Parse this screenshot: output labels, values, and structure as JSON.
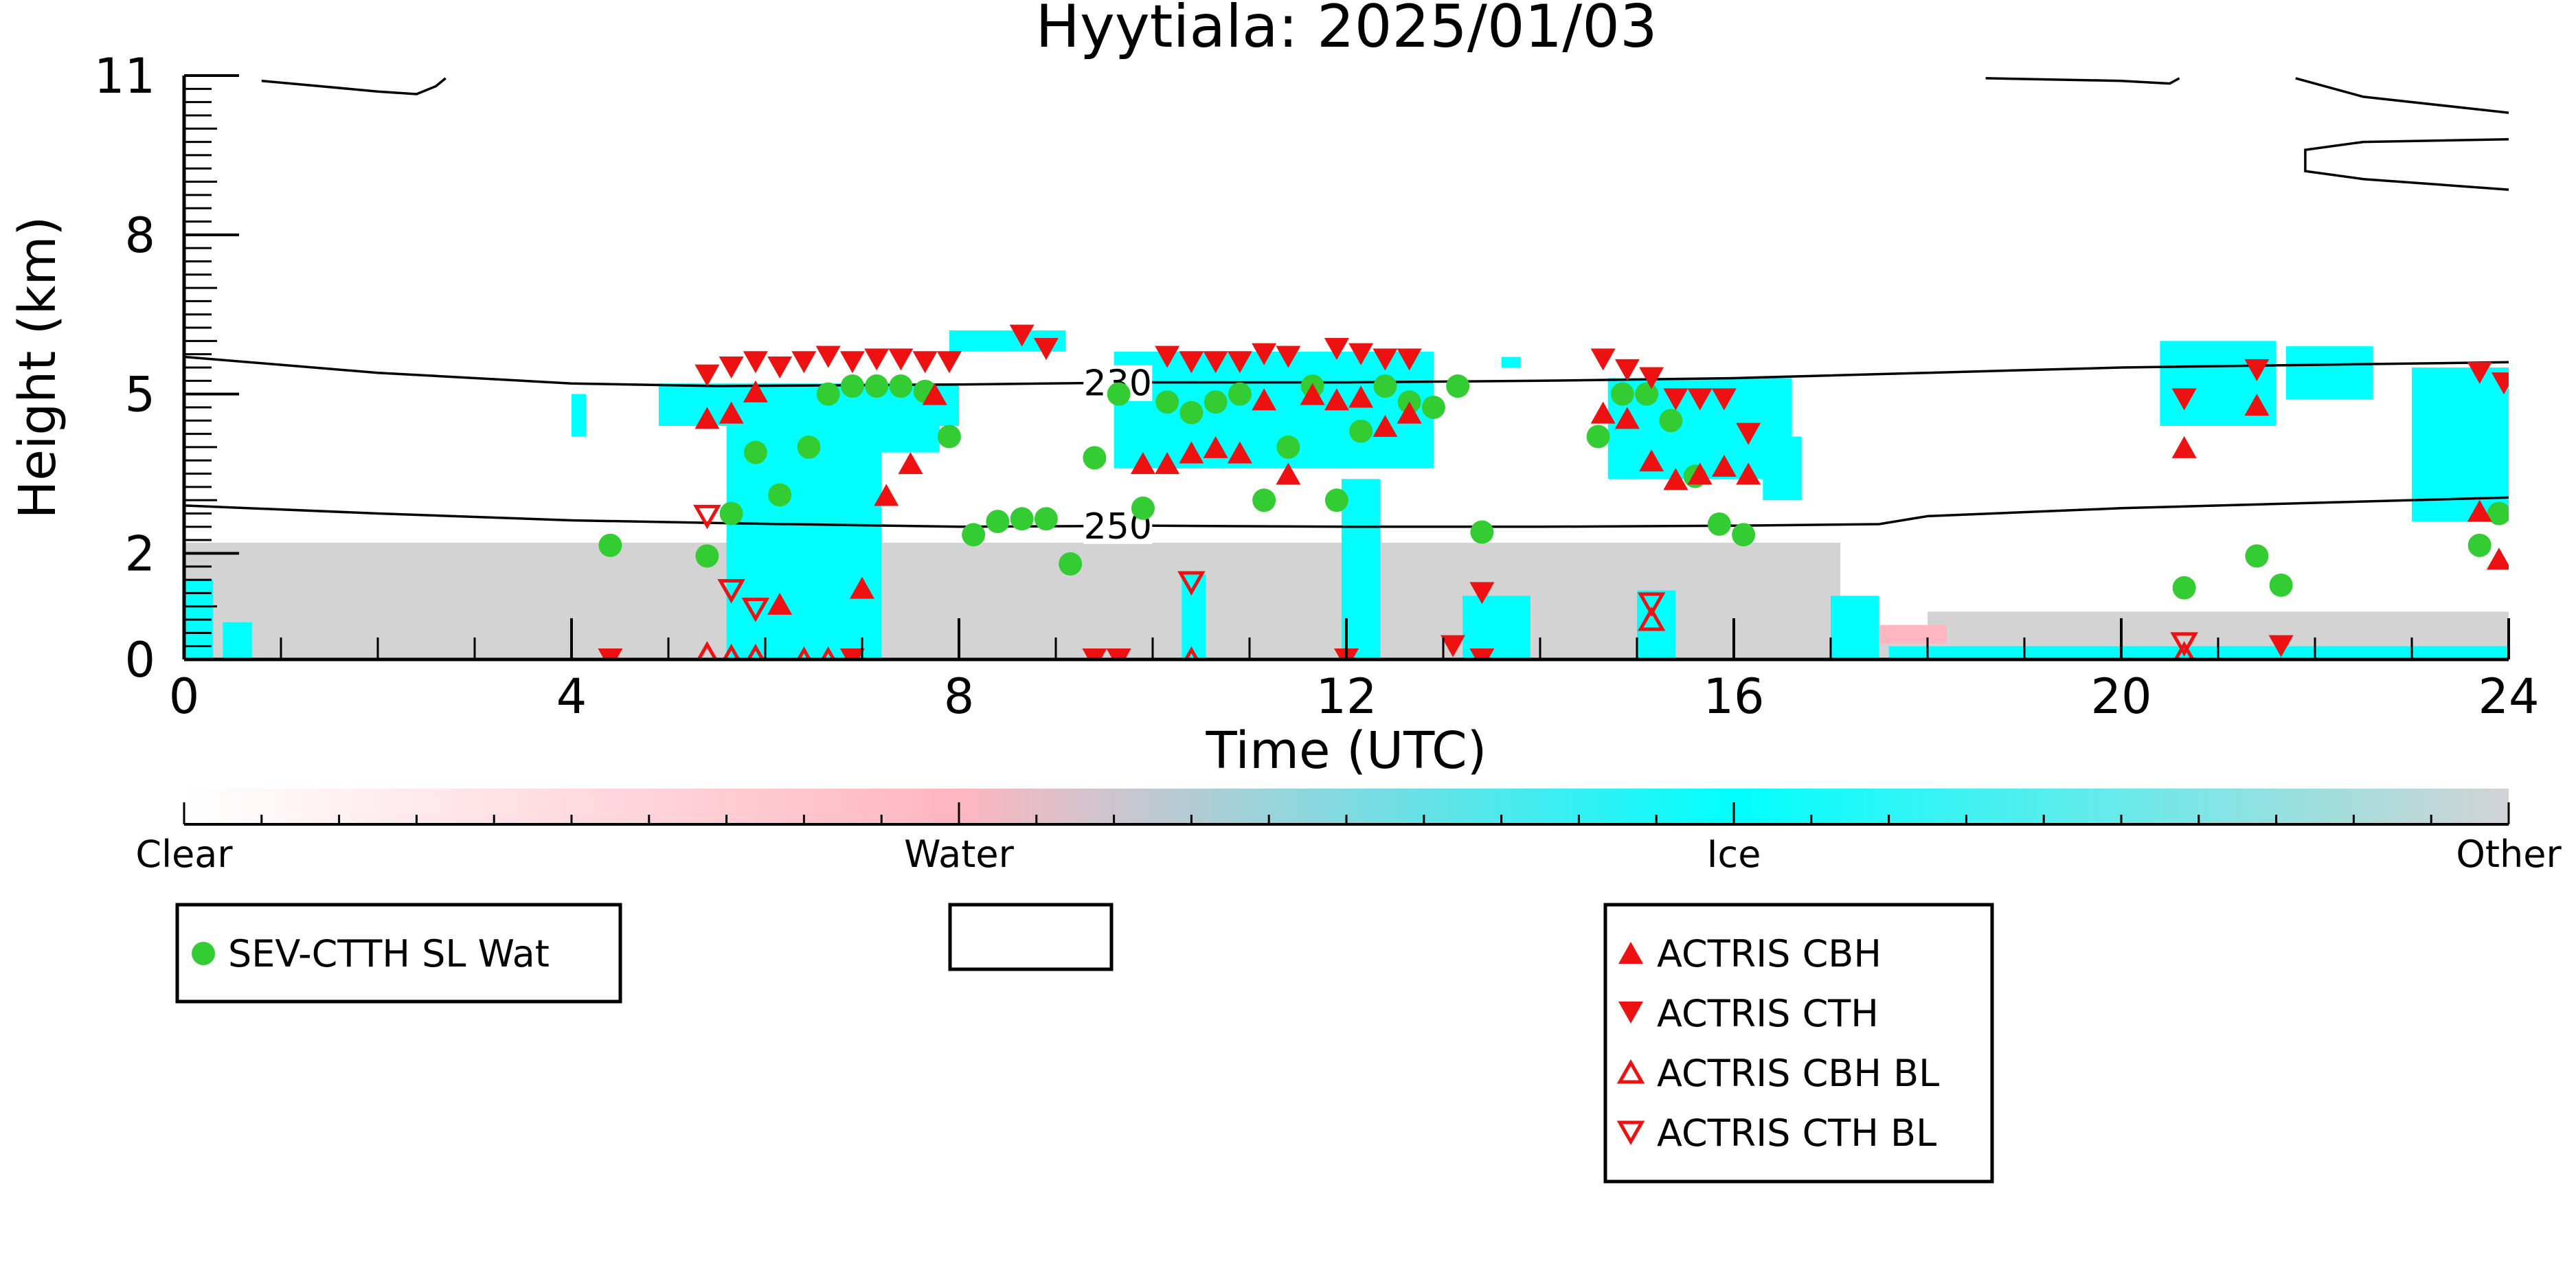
{
  "chart_data": {
    "type": "scatter",
    "title": "Hyytiala: 2025/01/03",
    "xlabel": "Time (UTC)",
    "ylabel": "Height (km)",
    "xlim": [
      0,
      24
    ],
    "ylim": [
      0,
      11
    ],
    "x_ticks": [
      0,
      4,
      8,
      12,
      16,
      20,
      24
    ],
    "y_ticks": [
      0,
      2,
      5,
      8,
      11
    ],
    "grid": false,
    "contours": [
      {
        "label": "230",
        "label_x": 9.3,
        "points": [
          [
            0,
            5.7
          ],
          [
            2,
            5.4
          ],
          [
            4,
            5.2
          ],
          [
            5.5,
            5.15
          ],
          [
            8,
            5.18
          ],
          [
            10,
            5.22
          ],
          [
            12,
            5.22
          ],
          [
            14,
            5.25
          ],
          [
            16,
            5.3
          ],
          [
            18,
            5.4
          ],
          [
            20,
            5.5
          ],
          [
            22,
            5.55
          ],
          [
            24,
            5.6
          ]
        ]
      },
      {
        "label": "250",
        "label_x": 9.3,
        "points": [
          [
            0,
            2.9
          ],
          [
            2,
            2.75
          ],
          [
            4,
            2.62
          ],
          [
            5.5,
            2.57
          ],
          [
            8,
            2.5
          ],
          [
            10,
            2.52
          ],
          [
            12,
            2.5
          ],
          [
            14,
            2.5
          ],
          [
            16,
            2.52
          ],
          [
            17.5,
            2.55
          ],
          [
            18,
            2.7
          ],
          [
            20,
            2.85
          ],
          [
            22,
            2.95
          ],
          [
            24,
            3.05
          ]
        ]
      },
      {
        "label": "",
        "label_x": null,
        "points": [
          [
            0.8,
            10.9
          ],
          [
            2,
            10.7
          ],
          [
            2.4,
            10.65
          ],
          [
            2.6,
            10.8
          ],
          [
            2.7,
            10.95
          ]
        ]
      },
      {
        "label": "",
        "label_x": null,
        "points": [
          [
            18.6,
            10.95
          ],
          [
            20,
            10.9
          ],
          [
            20.5,
            10.85
          ],
          [
            20.6,
            10.95
          ]
        ]
      },
      {
        "label": "",
        "label_x": null,
        "points": [
          [
            21.8,
            10.95
          ],
          [
            22.5,
            10.6
          ],
          [
            24,
            10.3
          ]
        ]
      },
      {
        "label": "",
        "label_x": null,
        "points": [
          [
            24,
            9.8
          ],
          [
            22.5,
            9.75
          ],
          [
            21.9,
            9.6
          ],
          [
            21.9,
            9.2
          ],
          [
            22.5,
            9.05
          ],
          [
            24,
            8.85
          ]
        ]
      }
    ],
    "background_regions": [
      {
        "class": "Other",
        "x0": 0,
        "x1": 17.1,
        "top": 2.2
      },
      {
        "class": "Other",
        "x0": 17.1,
        "x1": 18.0,
        "top": 0.55
      },
      {
        "class": "Other",
        "x0": 18.0,
        "x1": 24,
        "top": 0.9
      }
    ],
    "ice_regions": [
      {
        "x0": 0.0,
        "x1": 0.3,
        "y0": 0.0,
        "y1": 1.5
      },
      {
        "x0": 0.4,
        "x1": 0.7,
        "y0": 0.0,
        "y1": 0.7
      },
      {
        "x0": 4.0,
        "x1": 4.15,
        "y0": 4.2,
        "y1": 5.0
      },
      {
        "x0": 4.9,
        "x1": 8.0,
        "y0": 4.4,
        "y1": 5.2
      },
      {
        "x0": 5.6,
        "x1": 7.2,
        "y0": 0.0,
        "y1": 5.0
      },
      {
        "x0": 6.4,
        "x1": 7.8,
        "y0": 3.9,
        "y1": 5.1
      },
      {
        "x0": 7.9,
        "x1": 9.1,
        "y0": 5.8,
        "y1": 6.2
      },
      {
        "x0": 9.6,
        "x1": 12.9,
        "y0": 3.6,
        "y1": 5.8
      },
      {
        "x0": 10.3,
        "x1": 10.55,
        "y0": 0.0,
        "y1": 1.6
      },
      {
        "x0": 11.95,
        "x1": 12.35,
        "y0": 0.0,
        "y1": 3.4
      },
      {
        "x0": 13.2,
        "x1": 13.9,
        "y0": 0.0,
        "y1": 1.2
      },
      {
        "x0": 13.6,
        "x1": 13.8,
        "y0": 5.5,
        "y1": 5.7
      },
      {
        "x0": 14.7,
        "x1": 16.6,
        "y0": 3.4,
        "y1": 5.3
      },
      {
        "x0": 16.3,
        "x1": 16.7,
        "y0": 3.0,
        "y1": 4.2
      },
      {
        "x0": 15.0,
        "x1": 15.4,
        "y0": 0.0,
        "y1": 1.3
      },
      {
        "x0": 17.0,
        "x1": 17.5,
        "y0": 0.0,
        "y1": 1.2
      },
      {
        "x0": 17.6,
        "x1": 24.0,
        "y0": 0.0,
        "y1": 0.25
      },
      {
        "x0": 20.4,
        "x1": 21.6,
        "y0": 4.4,
        "y1": 6.0
      },
      {
        "x0": 21.7,
        "x1": 22.6,
        "y0": 4.9,
        "y1": 5.9
      },
      {
        "x0": 23.0,
        "x1": 24.0,
        "y0": 2.6,
        "y1": 5.5
      }
    ],
    "water_regions": [
      {
        "x0": 17.3,
        "x1": 18.2,
        "y0": 0.3,
        "y1": 0.65
      }
    ],
    "series": [
      {
        "name": "SEV-CTTH SL Wat",
        "marker": "circle",
        "color": "#33cc33",
        "points": [
          [
            4.4,
            2.15
          ],
          [
            5.4,
            1.95
          ],
          [
            5.65,
            2.75
          ],
          [
            5.9,
            3.9
          ],
          [
            6.15,
            3.1
          ],
          [
            6.45,
            4.0
          ],
          [
            6.65,
            5.0
          ],
          [
            6.9,
            5.15
          ],
          [
            7.15,
            5.15
          ],
          [
            7.4,
            5.15
          ],
          [
            7.65,
            5.05
          ],
          [
            7.9,
            4.2
          ],
          [
            8.15,
            2.35
          ],
          [
            8.4,
            2.6
          ],
          [
            8.65,
            2.65
          ],
          [
            8.9,
            2.65
          ],
          [
            9.15,
            1.8
          ],
          [
            9.4,
            3.8
          ],
          [
            9.65,
            5.0
          ],
          [
            9.9,
            2.85
          ],
          [
            10.15,
            4.85
          ],
          [
            10.4,
            4.65
          ],
          [
            10.65,
            4.85
          ],
          [
            10.9,
            5.0
          ],
          [
            11.15,
            3.0
          ],
          [
            11.4,
            4.0
          ],
          [
            11.65,
            5.15
          ],
          [
            11.9,
            3.0
          ],
          [
            12.15,
            4.3
          ],
          [
            12.4,
            5.15
          ],
          [
            12.65,
            4.85
          ],
          [
            12.9,
            4.75
          ],
          [
            13.15,
            5.15
          ],
          [
            13.4,
            2.4
          ],
          [
            14.6,
            4.2
          ],
          [
            14.85,
            5.0
          ],
          [
            15.1,
            5.0
          ],
          [
            15.35,
            4.5
          ],
          [
            15.6,
            3.45
          ],
          [
            15.85,
            2.55
          ],
          [
            16.1,
            2.35
          ],
          [
            20.65,
            1.35
          ],
          [
            21.4,
            1.95
          ],
          [
            21.65,
            1.4
          ],
          [
            23.7,
            2.15
          ],
          [
            23.9,
            2.75
          ]
        ]
      },
      {
        "name": "ACTRIS CBH",
        "marker": "triangle-up",
        "color": "#ee1111",
        "filled": true,
        "points": [
          [
            5.4,
            4.55
          ],
          [
            5.65,
            4.65
          ],
          [
            5.9,
            5.05
          ],
          [
            6.15,
            1.05
          ],
          [
            7.0,
            1.35
          ],
          [
            7.25,
            3.1
          ],
          [
            7.5,
            3.7
          ],
          [
            7.75,
            5.0
          ],
          [
            9.9,
            3.7
          ],
          [
            10.15,
            3.7
          ],
          [
            10.4,
            3.9
          ],
          [
            10.65,
            4.0
          ],
          [
            10.9,
            3.9
          ],
          [
            11.15,
            4.9
          ],
          [
            11.4,
            3.5
          ],
          [
            11.65,
            5.0
          ],
          [
            11.9,
            4.9
          ],
          [
            12.15,
            4.95
          ],
          [
            12.4,
            4.4
          ],
          [
            12.65,
            4.65
          ],
          [
            14.65,
            4.65
          ],
          [
            14.9,
            4.55
          ],
          [
            15.15,
            3.75
          ],
          [
            15.4,
            3.4
          ],
          [
            15.65,
            3.5
          ],
          [
            15.9,
            3.65
          ],
          [
            16.15,
            3.5
          ],
          [
            20.65,
            4.0
          ],
          [
            21.4,
            4.8
          ],
          [
            23.7,
            2.8
          ],
          [
            23.9,
            1.9
          ]
        ]
      },
      {
        "name": "ACTRIS CTH",
        "marker": "triangle-down",
        "color": "#ee1111",
        "filled": true,
        "points": [
          [
            4.4,
            0.0
          ],
          [
            5.4,
            5.35
          ],
          [
            5.65,
            5.5
          ],
          [
            5.9,
            5.6
          ],
          [
            6.15,
            5.5
          ],
          [
            6.4,
            5.6
          ],
          [
            6.65,
            5.7
          ],
          [
            6.9,
            0.0
          ],
          [
            6.9,
            5.6
          ],
          [
            7.15,
            5.65
          ],
          [
            7.4,
            5.65
          ],
          [
            7.65,
            5.6
          ],
          [
            7.9,
            5.6
          ],
          [
            8.65,
            6.1
          ],
          [
            8.9,
            5.85
          ],
          [
            9.4,
            0.0
          ],
          [
            9.65,
            0.0
          ],
          [
            10.15,
            5.7
          ],
          [
            10.4,
            5.6
          ],
          [
            10.65,
            5.6
          ],
          [
            10.9,
            5.6
          ],
          [
            11.15,
            5.75
          ],
          [
            11.4,
            5.7
          ],
          [
            11.9,
            5.85
          ],
          [
            12.0,
            0.0
          ],
          [
            12.15,
            5.75
          ],
          [
            12.4,
            5.65
          ],
          [
            12.65,
            5.65
          ],
          [
            13.1,
            0.25
          ],
          [
            13.4,
            1.25
          ],
          [
            13.4,
            0.0
          ],
          [
            14.65,
            5.65
          ],
          [
            14.9,
            5.45
          ],
          [
            15.15,
            5.3
          ],
          [
            15.4,
            4.9
          ],
          [
            15.65,
            4.9
          ],
          [
            15.9,
            4.9
          ],
          [
            16.15,
            4.25
          ],
          [
            20.65,
            4.9
          ],
          [
            21.4,
            5.45
          ],
          [
            21.65,
            0.25
          ],
          [
            23.7,
            5.4
          ],
          [
            23.95,
            5.2
          ]
        ]
      },
      {
        "name": "ACTRIS CBH BL",
        "marker": "triangle-up",
        "color": "#ee1111",
        "filled": false,
        "points": [
          [
            5.4,
            0.1
          ],
          [
            5.65,
            0.05
          ],
          [
            5.9,
            0.05
          ],
          [
            6.4,
            0.0
          ],
          [
            6.65,
            0.0
          ],
          [
            10.4,
            0.0
          ],
          [
            15.15,
            0.75
          ],
          [
            20.65,
            0.1
          ]
        ]
      },
      {
        "name": "ACTRIS CTH BL",
        "marker": "triangle-down",
        "color": "#ee1111",
        "filled": false,
        "points": [
          [
            5.4,
            2.7
          ],
          [
            5.65,
            1.3
          ],
          [
            5.9,
            0.95
          ],
          [
            10.4,
            1.45
          ],
          [
            15.15,
            1.05
          ],
          [
            20.65,
            0.3
          ]
        ]
      }
    ],
    "colorbar": {
      "labels": [
        "Clear",
        "Water",
        "Ice",
        "Other"
      ],
      "colors": [
        "#ffffff",
        "#ffb6c1",
        "#00ffff",
        "#d3d3d3"
      ]
    },
    "legends": [
      {
        "entries": [
          "SEV-CTTH SL Wat"
        ]
      },
      {
        "entries": []
      },
      {
        "entries": [
          "ACTRIS CBH",
          "ACTRIS CTH",
          "ACTRIS CBH BL",
          "ACTRIS CTH BL"
        ]
      }
    ]
  }
}
